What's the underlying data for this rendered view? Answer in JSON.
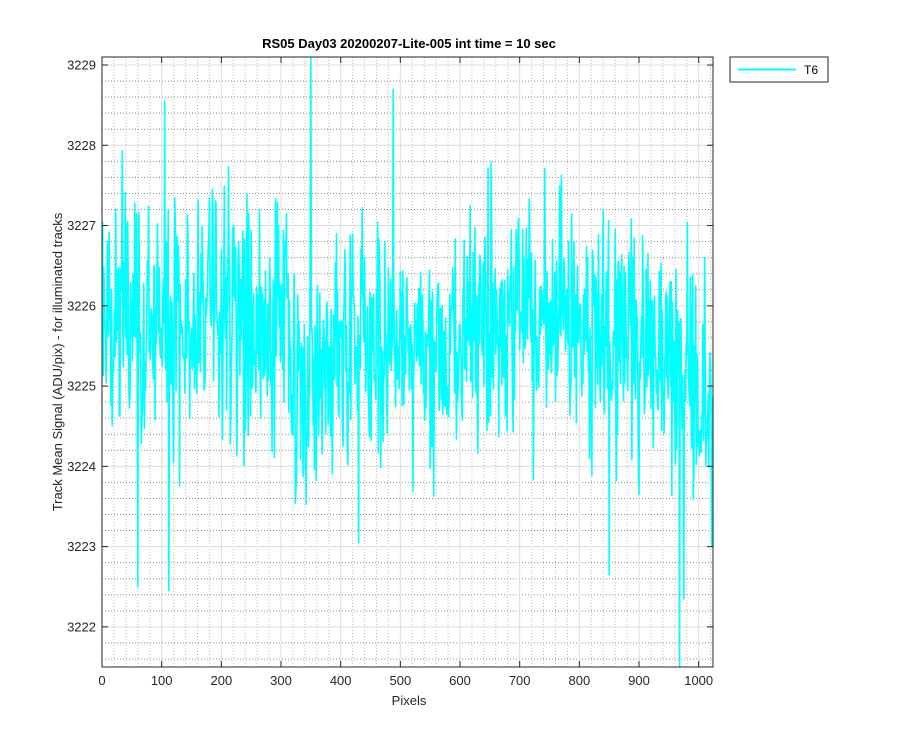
{
  "chart_data": {
    "type": "line",
    "title": "RS05 Day03 20200207-Lite-005 int time = 10 sec",
    "xlabel": "Pixels",
    "ylabel": "Track Mean Signal (ADU/pix) - for illuminated tracks",
    "xlim": [
      0,
      1024
    ],
    "ylim": [
      3221.5,
      3229.1
    ],
    "x_ticks": [
      0,
      100,
      200,
      300,
      400,
      500,
      600,
      700,
      800,
      900,
      1000
    ],
    "y_ticks": [
      3222,
      3223,
      3224,
      3225,
      3226,
      3227,
      3228,
      3229
    ],
    "grid": "major and minor",
    "legend_location": "outside top-right",
    "series": [
      {
        "name": "T6",
        "color": "#00ffff",
        "x_start": 1,
        "x_step": 1,
        "n_points": 1024,
        "mean": 3225.6,
        "spread": 0.75,
        "notable_points": [
          {
            "x": 105,
            "y": 3228.55
          },
          {
            "x": 112,
            "y": 3222.45
          },
          {
            "x": 60,
            "y": 3222.5
          },
          {
            "x": 350,
            "y": 3229.1
          },
          {
            "x": 488,
            "y": 3228.7
          },
          {
            "x": 430,
            "y": 3223.05
          },
          {
            "x": 850,
            "y": 3222.65
          },
          {
            "x": 968,
            "y": 3221.5
          },
          {
            "x": 975,
            "y": 3222.35
          },
          {
            "x": 1010,
            "y": 3226.6
          },
          {
            "x": 1022,
            "y": 3223.0
          }
        ]
      }
    ]
  }
}
